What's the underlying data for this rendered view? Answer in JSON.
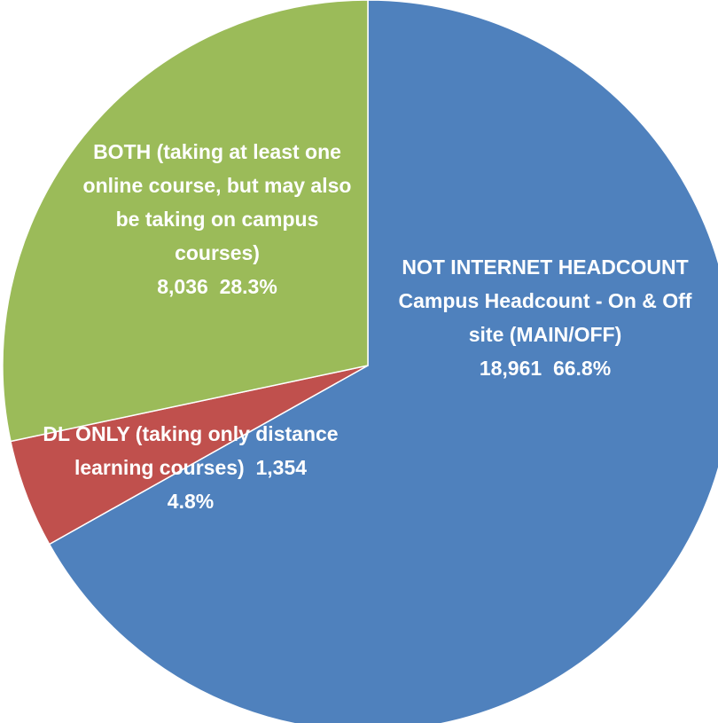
{
  "chart_data": {
    "type": "pie",
    "categories": [
      "NOT INTERNET HEADCOUNT Campus Headcount - On & Off site (MAIN/OFF)",
      "DL ONLY (taking only distance learning courses)",
      "BOTH (taking at least one online course, but may also be taking on campus courses)"
    ],
    "counts": [
      18961,
      1354,
      8036
    ],
    "count_labels": [
      "18,961",
      "1,354",
      "8,036"
    ],
    "values": [
      66.8,
      4.8,
      28.3
    ],
    "value_labels": [
      "66.8%",
      "4.8%",
      "28.3%"
    ],
    "colors": [
      "#4f81bd",
      "#c0504d",
      "#9bbb59"
    ]
  }
}
